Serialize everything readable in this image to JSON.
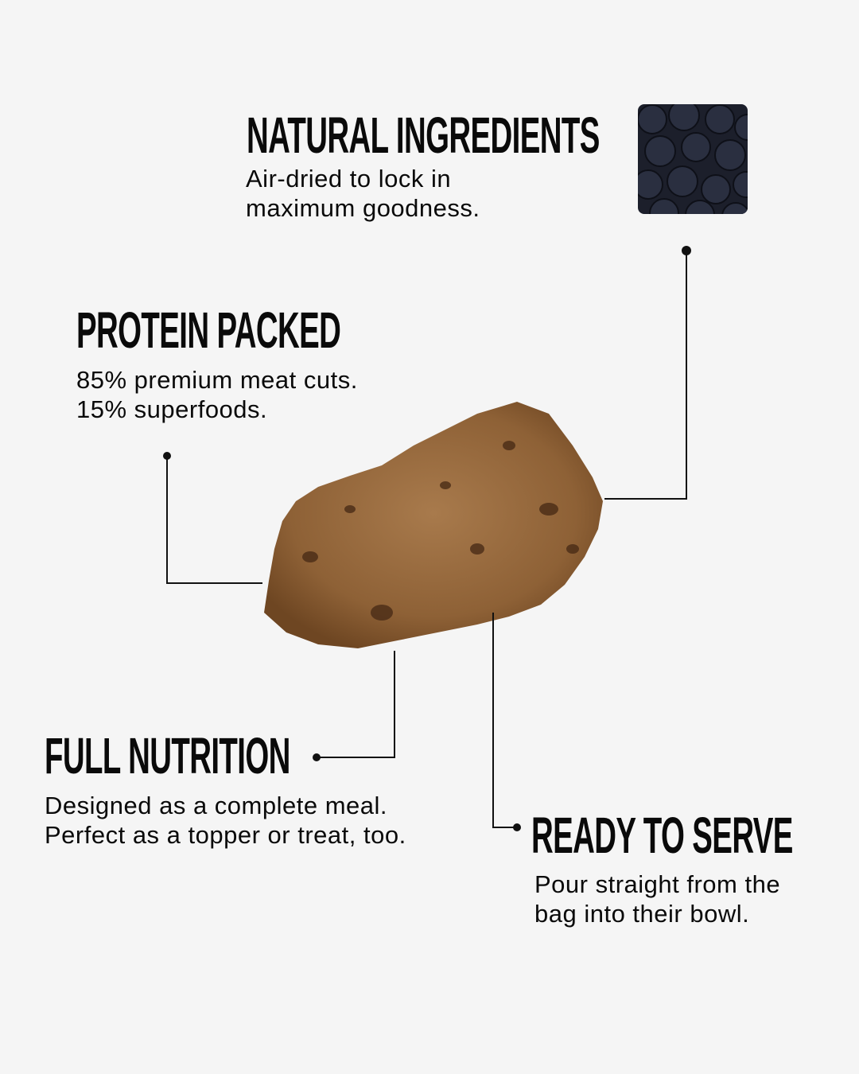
{
  "features": [
    {
      "title": "NATURAL INGREDIENTS",
      "lines": [
        "Air-dried to lock in",
        "maximum goodness."
      ]
    },
    {
      "title": "PROTEIN PACKED",
      "lines": [
        "85% premium meat cuts.",
        "15% superfoods."
      ]
    },
    {
      "title": "FULL NUTRITION",
      "lines": [
        "Designed as a complete meal.",
        "Perfect as a topper or treat, too."
      ]
    },
    {
      "title": "READY TO SERVE",
      "lines": [
        "Pour straight from the",
        "bag into their bowl."
      ]
    }
  ],
  "images": {
    "ingredient": "blueberries",
    "product": "air-dried food nugget"
  },
  "colors": {
    "background": "#f5f5f5",
    "text": "#0a0a0a",
    "product": "#9a6a3e",
    "berries": "#1c1f2b"
  }
}
